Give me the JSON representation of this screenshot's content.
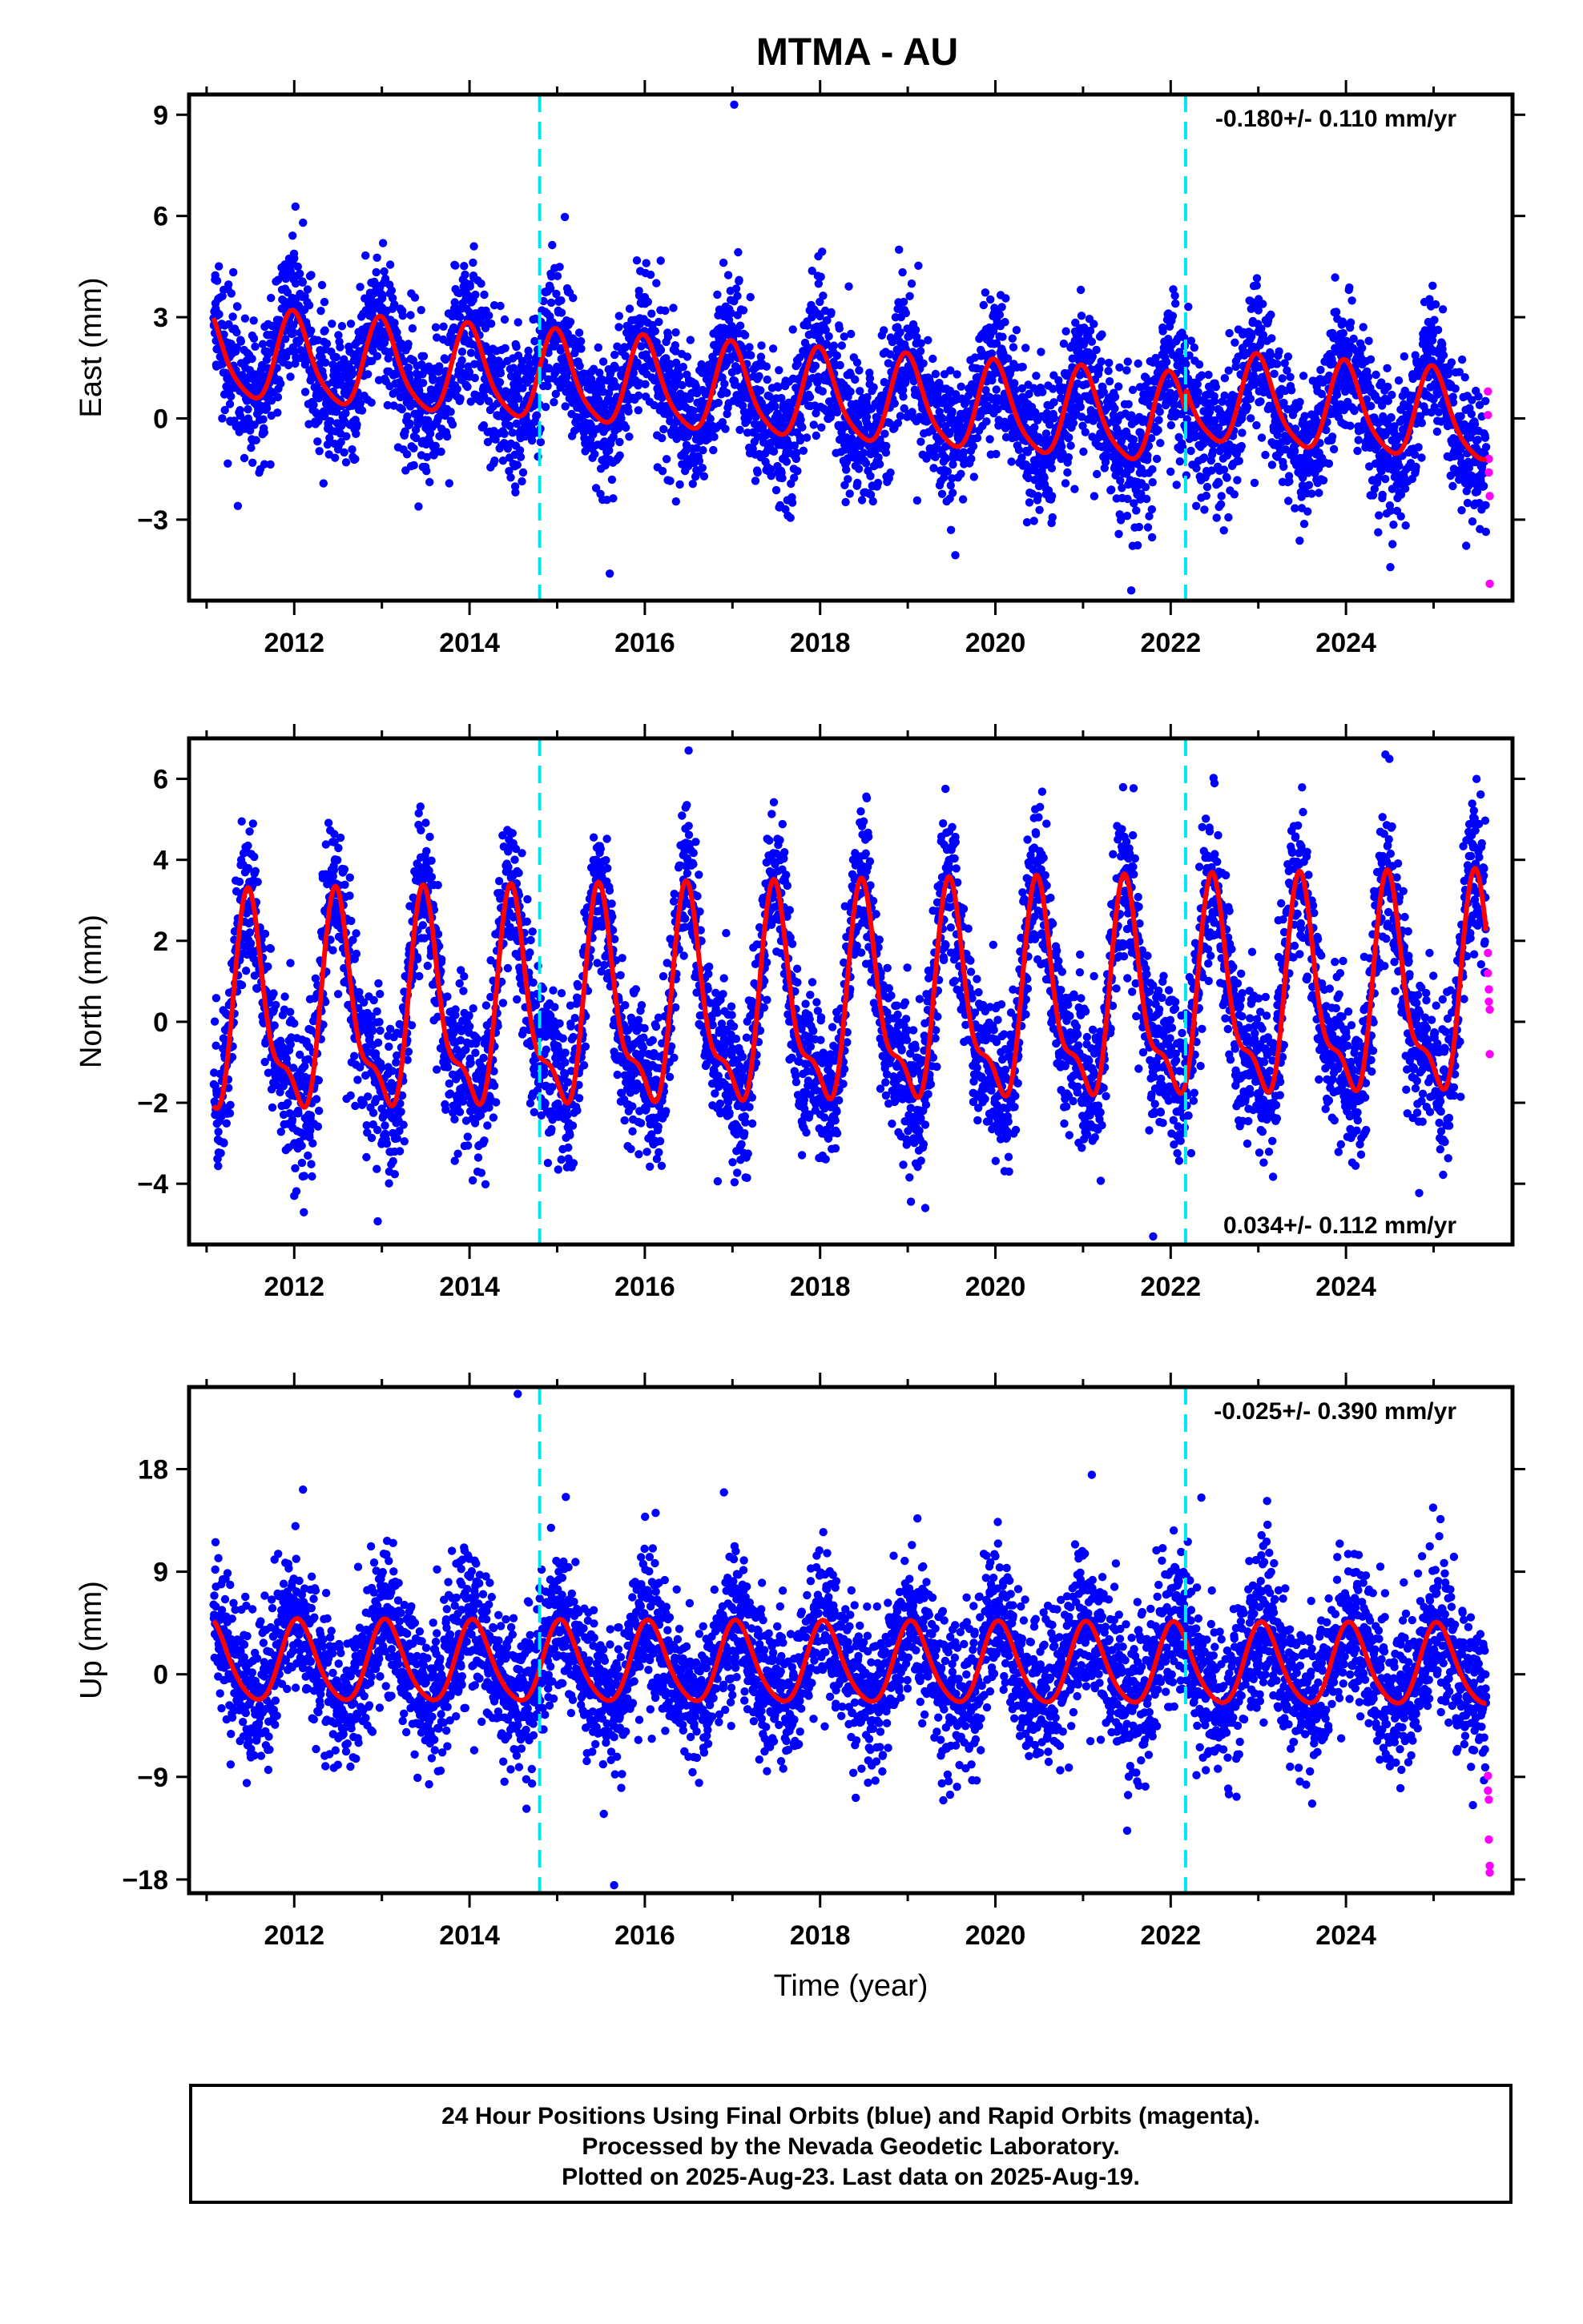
{
  "title": "MTMA - AU",
  "colors": {
    "final": "#0000ff",
    "rapid": "#ff00ff",
    "model": "#ff0000",
    "event": "#00e5ee",
    "frame": "#000000"
  },
  "chart_data": [
    {
      "type": "scatter",
      "component": "east",
      "ylabel": "East (mm)",
      "xlabel": "",
      "xlim": [
        2010.8,
        2025.9
      ],
      "ylim": [
        -5.4,
        9.6
      ],
      "yticks": [
        -3,
        0,
        3,
        6,
        9
      ],
      "ytick_labels": [
        "−3",
        "0",
        "3",
        "6",
        "9"
      ],
      "xticks": [
        2012,
        2014,
        2016,
        2018,
        2020,
        2022,
        2024
      ],
      "xtick_labels": [
        "2012",
        "2014",
        "2016",
        "2018",
        "2020",
        "2022",
        "2024"
      ],
      "rate_text": "-0.180+/- 0.110 mm/yr",
      "rate_position": "top-right",
      "event_lines": [
        2014.8,
        2022.17
      ],
      "data_span": [
        2011.08,
        2025.6
      ],
      "model": {
        "offset": 0.6,
        "trend": -0.18,
        "annual_amp": 1.3,
        "annual_phase_year": 2012.0,
        "semiannual_amp": 0.25,
        "noise_sd": 1.05,
        "step_at": 2022.17,
        "step": 0.7
      },
      "rapid_points": [
        {
          "x": 2025.62,
          "y": 0.8
        },
        {
          "x": 2025.62,
          "y": 0.1
        },
        {
          "x": 2025.63,
          "y": -1.2
        },
        {
          "x": 2025.63,
          "y": -1.6
        },
        {
          "x": 2025.64,
          "y": -2.3
        },
        {
          "x": 2025.64,
          "y": -4.9
        }
      ],
      "outliers": [
        {
          "x": 2017.02,
          "y": 9.3
        },
        {
          "x": 2012.1,
          "y": 5.8
        },
        {
          "x": 2018.9,
          "y": 5.0
        },
        {
          "x": 2014.05,
          "y": 5.1
        },
        {
          "x": 2021.55,
          "y": -5.1
        },
        {
          "x": 2015.6,
          "y": -4.6
        }
      ]
    },
    {
      "type": "scatter",
      "component": "north",
      "ylabel": "North (mm)",
      "xlabel": "",
      "xlim": [
        2010.8,
        2025.9
      ],
      "ylim": [
        -5.5,
        7.0
      ],
      "yticks": [
        -4,
        -2,
        0,
        2,
        4,
        6
      ],
      "ytick_labels": [
        "−4",
        "−2",
        "0",
        "2",
        "4",
        "6"
      ],
      "xticks": [
        2012,
        2014,
        2016,
        2018,
        2020,
        2022,
        2024
      ],
      "xtick_labels": [
        "2012",
        "2014",
        "2016",
        "2018",
        "2020",
        "2022",
        "2024"
      ],
      "rate_text": "0.034+/- 0.112 mm/yr",
      "rate_position": "bottom-right",
      "event_lines": [
        2014.8,
        2022.17
      ],
      "data_span": [
        2011.08,
        2025.6
      ],
      "model": {
        "offset": 0.3,
        "trend": 0.034,
        "annual_amp": 2.4,
        "annual_phase_year": 2011.5,
        "semiannual_amp": 0.9,
        "noise_sd": 0.95,
        "step_at": 2022.17,
        "step": 0.0
      },
      "rapid_points": [
        {
          "x": 2025.62,
          "y": 1.7
        },
        {
          "x": 2025.62,
          "y": 1.2
        },
        {
          "x": 2025.63,
          "y": 0.8
        },
        {
          "x": 2025.63,
          "y": 0.5
        },
        {
          "x": 2025.64,
          "y": 0.3
        },
        {
          "x": 2025.64,
          "y": -0.8
        }
      ],
      "outliers": [
        {
          "x": 2016.5,
          "y": 6.7
        },
        {
          "x": 2024.45,
          "y": 6.6
        },
        {
          "x": 2021.8,
          "y": -5.3
        },
        {
          "x": 2012.0,
          "y": -4.3
        },
        {
          "x": 2019.2,
          "y": -4.6
        }
      ]
    },
    {
      "type": "scatter",
      "component": "up",
      "ylabel": "Up (mm)",
      "xlabel": "Time (year)",
      "xlim": [
        2010.8,
        2025.9
      ],
      "ylim": [
        -19.2,
        25.2
      ],
      "yticks": [
        -18,
        -9,
        0,
        9,
        18
      ],
      "ytick_labels": [
        "−18",
        "−9",
        "0",
        "9",
        "18"
      ],
      "xticks": [
        2012,
        2014,
        2016,
        2018,
        2020,
        2022,
        2024
      ],
      "xtick_labels": [
        "2012",
        "2014",
        "2016",
        "2018",
        "2020",
        "2022",
        "2024"
      ],
      "rate_text": "-0.025+/- 0.390 mm/yr",
      "rate_position": "top-right",
      "event_lines": [
        2014.8,
        2022.17
      ],
      "data_span": [
        2011.08,
        2025.6
      ],
      "model": {
        "offset": 0.8,
        "trend": -0.025,
        "annual_amp": 3.5,
        "annual_phase_year": 2012.05,
        "semiannual_amp": 0.5,
        "noise_sd": 3.3,
        "step_at": 2022.17,
        "step": 0.0
      },
      "rapid_points": [
        {
          "x": 2025.62,
          "y": -8.9
        },
        {
          "x": 2025.62,
          "y": -10.2
        },
        {
          "x": 2025.63,
          "y": -11.0
        },
        {
          "x": 2025.63,
          "y": -14.5
        },
        {
          "x": 2025.64,
          "y": -16.8
        },
        {
          "x": 2025.64,
          "y": -17.4
        }
      ],
      "outliers": [
        {
          "x": 2014.55,
          "y": 24.6
        },
        {
          "x": 2015.65,
          "y": -18.5
        },
        {
          "x": 2021.1,
          "y": 17.5
        },
        {
          "x": 2022.35,
          "y": 15.5
        },
        {
          "x": 2012.1,
          "y": 16.2
        },
        {
          "x": 2023.1,
          "y": 15.2
        }
      ]
    }
  ],
  "footer": {
    "line1": "24 Hour Positions Using Final Orbits (blue) and Rapid Orbits (magenta).",
    "line2": "Processed by the Nevada Geodetic Laboratory.",
    "line3": "Plotted on 2025-Aug-23. Last data on 2025-Aug-19."
  }
}
